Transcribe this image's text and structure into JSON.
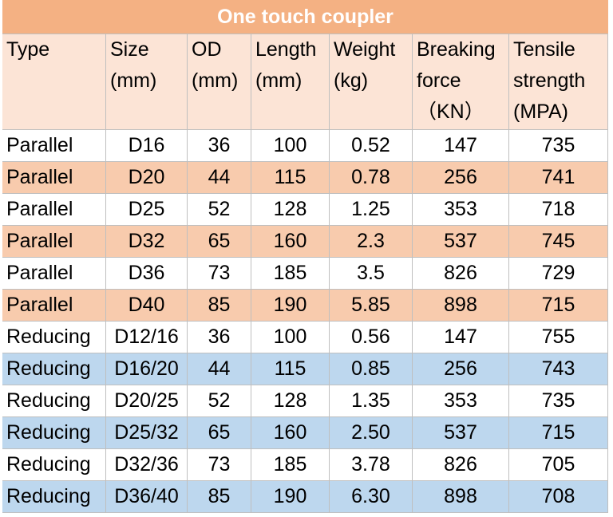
{
  "title": "One touch coupler",
  "table": {
    "header": [
      [
        "Type"
      ],
      [
        "Size",
        "(mm)"
      ],
      [
        "OD",
        "(mm)"
      ],
      [
        "Length",
        "(mm)"
      ],
      [
        "Weight",
        "(kg)"
      ],
      [
        "Breaking",
        "force",
        "（KN）"
      ],
      [
        "Tensile",
        "strength",
        "(MPA)"
      ]
    ],
    "rows": [
      [
        "Parallel",
        "D16",
        "36",
        "100",
        "0.52",
        "147",
        "735"
      ],
      [
        "Parallel",
        "D20",
        "44",
        "115",
        "0.78",
        "256",
        "741"
      ],
      [
        "Parallel",
        "D25",
        "52",
        "128",
        "1.25",
        "353",
        "718"
      ],
      [
        "Parallel",
        "D32",
        "65",
        "160",
        "2.3",
        "537",
        "745"
      ],
      [
        "Parallel",
        "D36",
        "73",
        "185",
        "3.5",
        "826",
        "729"
      ],
      [
        "Parallel",
        "D40",
        "85",
        "190",
        "5.85",
        "898",
        "715"
      ],
      [
        "Reducing",
        "D12/16",
        "36",
        "100",
        "0.56",
        "147",
        "755"
      ],
      [
        "Reducing",
        "D16/20",
        "44",
        "115",
        "0.85",
        "256",
        "743"
      ],
      [
        "Reducing",
        "D20/25",
        "52",
        "128",
        "1.35",
        "353",
        "735"
      ],
      [
        "Reducing",
        "D25/32",
        "65",
        "160",
        "2.50",
        "537",
        "715"
      ],
      [
        "Reducing",
        "D32/36",
        "73",
        "185",
        "3.78",
        "826",
        "705"
      ],
      [
        "Reducing",
        "D36/40",
        "85",
        "190",
        "6.30",
        "898",
        "708"
      ]
    ]
  }
}
